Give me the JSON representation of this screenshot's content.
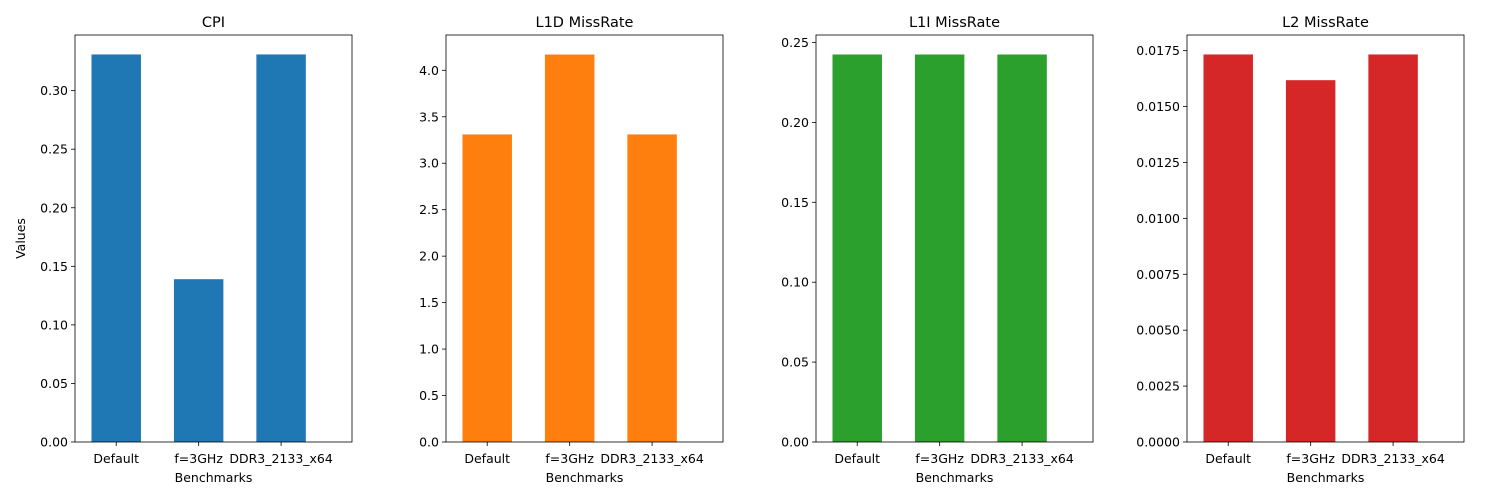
{
  "chart_data": [
    {
      "type": "bar",
      "title": "CPI",
      "xlabel": "Benchmarks",
      "ylabel": "Values",
      "categories": [
        "Default",
        "f=3GHz",
        "DDR3_2133_x64"
      ],
      "values": [
        0.3309,
        0.139,
        0.3309
      ],
      "ylim": [
        0,
        0.3475
      ],
      "yticks": [
        0,
        0.05,
        0.1,
        0.15,
        0.2,
        0.25,
        0.3
      ],
      "ytick_labels": [
        "0.00",
        "0.05",
        "0.10",
        "0.15",
        "0.20",
        "0.25",
        "0.30"
      ],
      "color": "#1f77b4",
      "grid": false
    },
    {
      "type": "bar",
      "title": "L1D MissRate",
      "xlabel": "Benchmarks",
      "ylabel": "",
      "categories": [
        "Default",
        "f=3GHz",
        "DDR3_2133_x64"
      ],
      "values": [
        3.31,
        4.17,
        3.31
      ],
      "ylim": [
        0,
        4.38
      ],
      "yticks": [
        0,
        0.5,
        1.0,
        1.5,
        2.0,
        2.5,
        3.0,
        3.5,
        4.0
      ],
      "ytick_labels": [
        "0.0",
        "0.5",
        "1.0",
        "1.5",
        "2.0",
        "2.5",
        "3.0",
        "3.5",
        "4.0"
      ],
      "color": "#ff7f0e",
      "grid": false
    },
    {
      "type": "bar",
      "title": "L1I MissRate",
      "xlabel": "Benchmarks",
      "ylabel": "",
      "categories": [
        "Default",
        "f=3GHz",
        "DDR3_2133_x64"
      ],
      "values": [
        0.2425,
        0.2425,
        0.2425
      ],
      "ylim": [
        0,
        0.2547
      ],
      "yticks": [
        0,
        0.05,
        0.1,
        0.15,
        0.2,
        0.25
      ],
      "ytick_labels": [
        "0.00",
        "0.05",
        "0.10",
        "0.15",
        "0.20",
        "0.25"
      ],
      "color": "#2ca02c",
      "grid": false
    },
    {
      "type": "bar",
      "title": "L2 MissRate",
      "xlabel": "Benchmarks",
      "ylabel": "",
      "categories": [
        "Default",
        "f=3GHz",
        "DDR3_2133_x64"
      ],
      "values": [
        0.01733,
        0.01618,
        0.01733
      ],
      "ylim": [
        0,
        0.0182
      ],
      "yticks": [
        0,
        0.0025,
        0.005,
        0.0075,
        0.01,
        0.0125,
        0.015,
        0.0175
      ],
      "ytick_labels": [
        "0.0000",
        "0.0025",
        "0.0050",
        "0.0075",
        "0.0100",
        "0.0125",
        "0.0150",
        "0.0175"
      ],
      "color": "#d62728",
      "grid": false
    }
  ]
}
